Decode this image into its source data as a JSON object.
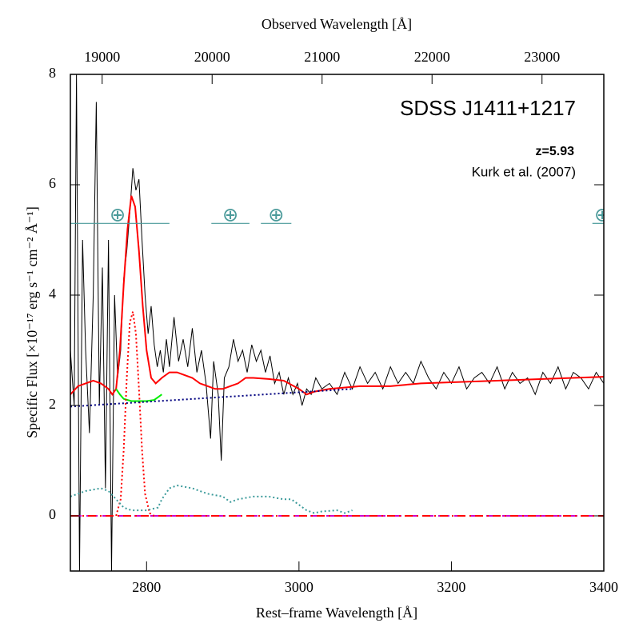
{
  "chart_data": {
    "type": "line",
    "title": "SDSS J1411+1217",
    "annotations": [
      "z=5.93",
      "Kurk et al. (2007)"
    ],
    "x_label": "Rest–frame Wavelength [Å]",
    "x2_label": "Observed Wavelength [Å]",
    "y_label": "Specific Flux [×10⁻¹⁷ erg s⁻¹ cm⁻² Å⁻¹]",
    "xlim": [
      2700,
      3400
    ],
    "xticks": [
      2800,
      3000,
      3200,
      3400
    ],
    "x2lim": [
      18711,
      23562
    ],
    "x2ticks": [
      19000,
      20000,
      21000,
      22000,
      23000
    ],
    "ylim": [
      -1,
      8
    ],
    "yticks": [
      0,
      2,
      4,
      6,
      8
    ],
    "series": [
      {
        "color": "#000000",
        "style": "solid",
        "x": [
          2700,
          2705,
          2708,
          2712,
          2716,
          2720,
          2725,
          2730,
          2734,
          2738,
          2742,
          2746,
          2750,
          2754,
          2758,
          2762,
          2766,
          2770,
          2774,
          2778,
          2782,
          2786,
          2790,
          2794,
          2798,
          2802,
          2806,
          2810,
          2814,
          2818,
          2822,
          2826,
          2830,
          2836,
          2842,
          2848,
          2854,
          2860,
          2866,
          2872,
          2878,
          2884,
          2888,
          2894,
          2898,
          2902,
          2908,
          2914,
          2920,
          2926,
          2932,
          2938,
          2944,
          2950,
          2956,
          2962,
          2968,
          2974,
          2980,
          2986,
          2992,
          2998,
          3004,
          3010,
          3016,
          3022,
          3030,
          3040,
          3050,
          3060,
          3070,
          3080,
          3090,
          3100,
          3110,
          3120,
          3130,
          3140,
          3150,
          3160,
          3170,
          3180,
          3190,
          3200,
          3210,
          3220,
          3230,
          3240,
          3250,
          3260,
          3270,
          3280,
          3290,
          3300,
          3310,
          3320,
          3330,
          3340,
          3350,
          3360,
          3370,
          3380,
          3390,
          3400
        ],
        "values": [
          3.0,
          2.0,
          8,
          -1,
          5,
          3,
          1.5,
          4,
          7.5,
          2,
          4.5,
          0.5,
          5,
          -1,
          4,
          2.5,
          3,
          4.3,
          4.8,
          5.5,
          6.3,
          5.9,
          6.1,
          5.0,
          4.0,
          3.3,
          3.8,
          3.1,
          2.7,
          3.0,
          2.6,
          3.2,
          2.7,
          3.6,
          2.8,
          3.2,
          2.7,
          3.4,
          2.6,
          3.0,
          2.4,
          1.4,
          2.8,
          2.2,
          1.0,
          2.5,
          2.7,
          3.2,
          2.8,
          3.0,
          2.6,
          3.1,
          2.8,
          3.0,
          2.6,
          2.9,
          2.4,
          2.6,
          2.2,
          2.5,
          2.2,
          2.4,
          2.0,
          2.3,
          2.2,
          2.5,
          2.3,
          2.4,
          2.2,
          2.6,
          2.3,
          2.7,
          2.4,
          2.6,
          2.3,
          2.7,
          2.4,
          2.6,
          2.4,
          2.8,
          2.5,
          2.3,
          2.6,
          2.4,
          2.7,
          2.3,
          2.5,
          2.6,
          2.4,
          2.7,
          2.3,
          2.6,
          2.4,
          2.5,
          2.2,
          2.6,
          2.4,
          2.7,
          2.3,
          2.6,
          2.5,
          2.3,
          2.6,
          2.4
        ]
      },
      {
        "color": "#ff0000",
        "style": "solid",
        "x": [
          2700,
          2710,
          2720,
          2730,
          2740,
          2750,
          2755,
          2760,
          2765,
          2770,
          2775,
          2780,
          2785,
          2790,
          2795,
          2800,
          2806,
          2812,
          2820,
          2830,
          2840,
          2850,
          2860,
          2870,
          2880,
          2890,
          2900,
          2910,
          2920,
          2930,
          2940,
          2960,
          2980,
          3000,
          3010,
          3020,
          3040,
          3080,
          3120,
          3160,
          3200,
          3260,
          3320,
          3360,
          3400
        ],
        "values": [
          2.2,
          2.35,
          2.4,
          2.45,
          2.4,
          2.3,
          2.2,
          2.3,
          3.0,
          4.2,
          5.2,
          5.8,
          5.6,
          4.8,
          3.8,
          3.0,
          2.5,
          2.4,
          2.5,
          2.6,
          2.6,
          2.55,
          2.5,
          2.4,
          2.35,
          2.3,
          2.3,
          2.35,
          2.4,
          2.5,
          2.5,
          2.48,
          2.45,
          2.3,
          2.2,
          2.25,
          2.3,
          2.35,
          2.35,
          2.4,
          2.42,
          2.45,
          2.48,
          2.5,
          2.52
        ]
      },
      {
        "color": "#00ee00",
        "style": "solid",
        "x": [
          2760,
          2765,
          2770,
          2780,
          2790,
          2800,
          2810,
          2815,
          2820
        ],
        "values": [
          2.3,
          2.2,
          2.12,
          2.08,
          2.08,
          2.08,
          2.1,
          2.15,
          2.2
        ]
      },
      {
        "color": "#ff0000",
        "style": "dotted",
        "x": [
          2760,
          2766,
          2770,
          2774,
          2778,
          2782,
          2786,
          2790,
          2794,
          2798,
          2804,
          2810
        ],
        "values": [
          0,
          0.3,
          1.2,
          2.5,
          3.5,
          3.7,
          3.3,
          2.3,
          1.2,
          0.4,
          0.05,
          0
        ]
      },
      {
        "color": "#000080",
        "style": "dotted",
        "x": [
          2700,
          3070
        ],
        "values": [
          1.98,
          2.3
        ]
      },
      {
        "color": "#3a9a9a",
        "style": "dotted",
        "x": [
          2700,
          2720,
          2740,
          2750,
          2760,
          2770,
          2780,
          2800,
          2815,
          2820,
          2830,
          2840,
          2860,
          2880,
          2900,
          2910,
          2920,
          2940,
          2960,
          2980,
          2990,
          3000,
          3010,
          3020,
          3030,
          3050,
          3060,
          3070
        ],
        "values": [
          0.35,
          0.45,
          0.5,
          0.45,
          0.3,
          0.15,
          0.1,
          0.1,
          0.15,
          0.3,
          0.5,
          0.55,
          0.5,
          0.4,
          0.35,
          0.25,
          0.3,
          0.35,
          0.35,
          0.3,
          0.3,
          0.2,
          0.1,
          0.05,
          0.08,
          0.1,
          0.05,
          0.1
        ]
      },
      {
        "color": "#cc00cc",
        "style": "dashed",
        "x": [
          2700,
          3400
        ],
        "values": [
          0,
          0
        ]
      },
      {
        "color": "#ff0000",
        "style": "dashdot",
        "x": [
          2700,
          3400
        ],
        "values": [
          0,
          0
        ]
      }
    ],
    "telluric_color": "#4a9a9a",
    "telluric": [
      {
        "label": "⊕",
        "x": 2762,
        "xrange": [
          2700,
          2830
        ],
        "y": 5.3
      },
      {
        "label": "⊕",
        "x": 2910,
        "xrange": [
          2885,
          2935
        ],
        "y": 5.3
      },
      {
        "label": "⊕",
        "x": 2970,
        "xrange": [
          2950,
          2990
        ],
        "y": 5.3
      },
      {
        "label": "⊕",
        "x": 3398,
        "xrange": [
          3385,
          3400
        ],
        "y": 5.3
      }
    ]
  }
}
